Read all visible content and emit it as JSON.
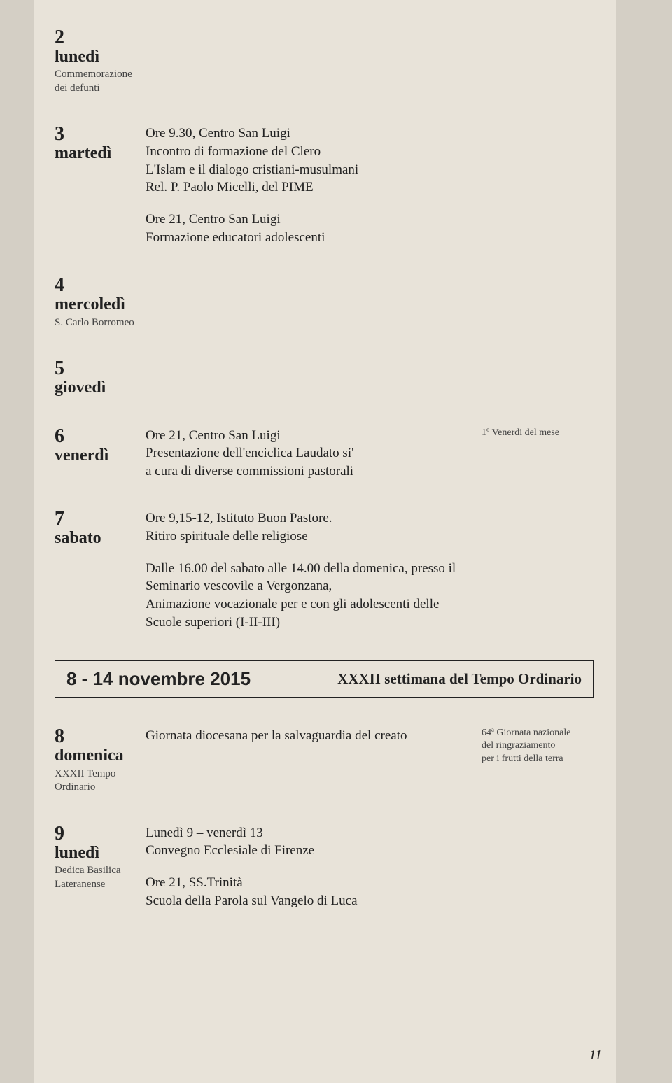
{
  "entries": [
    {
      "num": "2",
      "day": "lunedì",
      "note": "Commemorazione\ndei defunti",
      "body": "",
      "side": ""
    },
    {
      "num": "3",
      "day": "martedì",
      "note": "",
      "body": "Ore 9.30, Centro San Luigi\nIncontro di formazione del Clero\nL'Islam e il dialogo cristiani-musulmani\nRel. P. Paolo Micelli, del PIME",
      "body2": "Ore 21, Centro San Luigi\nFormazione educatori adolescenti",
      "side": ""
    },
    {
      "num": "4",
      "day": "mercoledì",
      "note": "S. Carlo Borromeo",
      "body": "",
      "side": ""
    },
    {
      "num": "5",
      "day": "giovedì",
      "note": "",
      "body": "",
      "side": ""
    },
    {
      "num": "6",
      "day": "venerdì",
      "note": "",
      "body": "Ore 21, Centro San Luigi\nPresentazione dell'enciclica Laudato si'\na cura di diverse commissioni pastorali",
      "side": "1º Venerdi del mese"
    },
    {
      "num": "7",
      "day": "sabato",
      "note": "",
      "body": "Ore 9,15-12, Istituto Buon Pastore.\nRitiro spirituale delle religiose",
      "body2": "Dalle 16.00 del sabato alle 14.00 della domenica, presso il Seminario vescovile a Vergonzana,\nAnimazione vocazionale per e con gli adolescenti delle Scuole superiori (I-II-III)",
      "side": ""
    }
  ],
  "week": {
    "dates": "8 - 14 novembre 2015",
    "title": "XXXII settimana del Tempo Ordinario"
  },
  "entries2": [
    {
      "num": "8",
      "day": "domenica",
      "note": "XXXII Tempo Ordinario",
      "body": "Giornata diocesana per la salvaguardia del creato",
      "side": "64ª Giornata nazionale\ndel ringraziamento\nper i frutti della terra"
    },
    {
      "num": "9",
      "day": "lunedì",
      "note": "Dedica Basilica\nLateranense",
      "body": "Lunedì 9 – venerdì 13\nConvegno Ecclesiale di Firenze",
      "body2": "Ore 21, SS.Trinità\nScuola della Parola sul Vangelo di Luca",
      "side": ""
    }
  ],
  "page_num": "11"
}
